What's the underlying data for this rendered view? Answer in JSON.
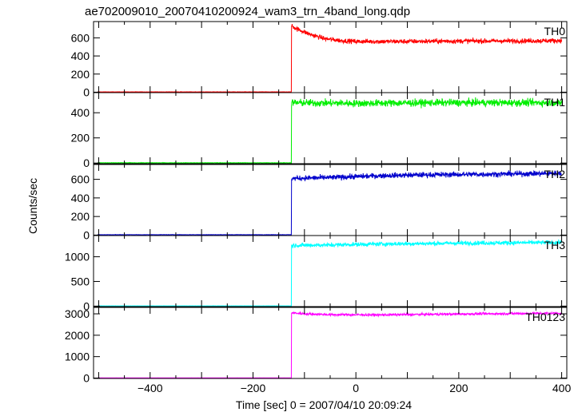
{
  "chart_data": {
    "type": "line",
    "title": "ae702009010_20070410200924_wam3_trn_4band_long.qdp",
    "xlabel": "Time [sec] 0 = 2007/04/10 20:09:24",
    "ylabel": "Counts/sec",
    "xlim": [
      -510,
      410
    ],
    "xticks": [
      -400,
      -200,
      0,
      200,
      400
    ],
    "onset_time": -125,
    "grid": false,
    "panels": [
      {
        "label": "TH0",
        "color": "#ff0000",
        "ylim": [
          -5,
          780
        ],
        "yticks": [
          0,
          200,
          400,
          600
        ],
        "pre_level": 3,
        "noise": 18,
        "post_profile": [
          [
            -125,
            735
          ],
          [
            -115,
            700
          ],
          [
            -90,
            640
          ],
          [
            -60,
            590
          ],
          [
            -30,
            570
          ],
          [
            0,
            560
          ],
          [
            100,
            560
          ],
          [
            200,
            565
          ],
          [
            300,
            565
          ],
          [
            400,
            570
          ]
        ]
      },
      {
        "label": "TH1",
        "color": "#00ee00",
        "ylim": [
          -5,
          560
        ],
        "yticks": [
          0,
          200,
          400
        ],
        "pre_level": 2,
        "noise": 20,
        "post_profile": [
          [
            -125,
            480
          ],
          [
            0,
            475
          ],
          [
            100,
            478
          ],
          [
            200,
            480
          ],
          [
            300,
            480
          ],
          [
            400,
            480
          ]
        ]
      },
      {
        "label": "TH2",
        "color": "#0000cc",
        "ylim": [
          -5,
          760
        ],
        "yticks": [
          0,
          200,
          400,
          600
        ],
        "pre_level": 4,
        "noise": 20,
        "post_profile": [
          [
            -125,
            610
          ],
          [
            -50,
            620
          ],
          [
            50,
            640
          ],
          [
            150,
            650
          ],
          [
            250,
            655
          ],
          [
            400,
            665
          ]
        ]
      },
      {
        "label": "TH3",
        "color": "#00ffff",
        "ylim": [
          -10,
          1430
        ],
        "yticks": [
          0,
          500,
          1000
        ],
        "pre_level": 5,
        "noise": 30,
        "post_profile": [
          [
            -125,
            1230
          ],
          [
            -50,
            1240
          ],
          [
            50,
            1260
          ],
          [
            150,
            1270
          ],
          [
            250,
            1280
          ],
          [
            400,
            1290
          ]
        ]
      },
      {
        "label": "TH0123",
        "color": "#ff00ff",
        "ylim": [
          -20,
          3300
        ],
        "yticks": [
          0,
          1000,
          2000,
          3000
        ],
        "pre_level": 10,
        "noise": 40,
        "post_profile": [
          [
            -125,
            3050
          ],
          [
            -100,
            3000
          ],
          [
            -50,
            2960
          ],
          [
            50,
            2950
          ],
          [
            150,
            2980
          ],
          [
            250,
            3000
          ],
          [
            400,
            3030
          ]
        ]
      }
    ]
  }
}
